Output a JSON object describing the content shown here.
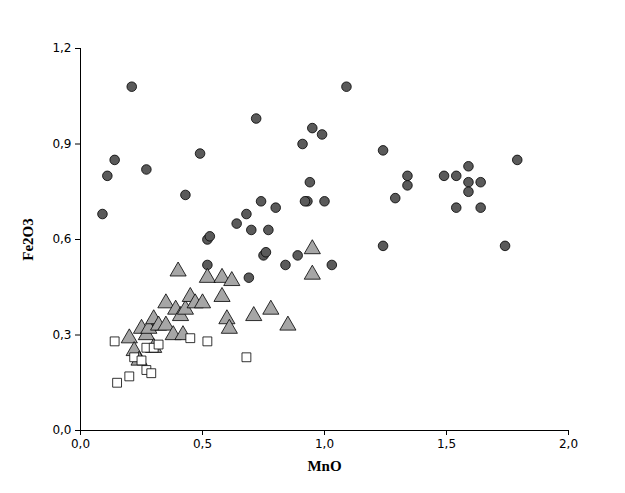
{
  "chart_data": {
    "type": "scatter",
    "x_label": "MnO",
    "y_label": "Fe2O3",
    "xlim": [
      0,
      2
    ],
    "ylim": [
      0,
      1.2
    ],
    "xticks": [
      {
        "value": 0,
        "label": "0,0"
      },
      {
        "value": 0.5,
        "label": "0,5"
      },
      {
        "value": 1,
        "label": "1,0"
      },
      {
        "value": 1.5,
        "label": "1,5"
      },
      {
        "value": 2,
        "label": "2,0"
      }
    ],
    "yticks": [
      {
        "value": 0,
        "label": "0,0"
      },
      {
        "value": 0.3,
        "label": "0,3"
      },
      {
        "value": 0.6,
        "label": "0,6"
      },
      {
        "value": 0.9,
        "label": "0,9"
      },
      {
        "value": 1.2,
        "label": "1,2"
      }
    ],
    "grid": false,
    "series": [
      {
        "color": "#5a5a5a",
        "marker": "circle",
        "x": [
          0.09,
          0.11,
          0.14,
          0.21,
          0.27,
          0.43,
          0.49,
          0.52,
          0.53,
          0.52,
          0.64,
          0.68,
          0.7,
          0.69,
          0.72,
          0.74,
          0.75,
          0.76,
          0.77,
          0.8,
          0.84,
          0.89,
          0.91,
          0.93,
          0.94,
          0.95,
          0.99,
          1.0,
          1.03,
          1.09,
          1.24,
          1.24,
          1.29,
          1.34,
          1.34,
          1.49,
          1.54,
          1.54,
          1.59,
          1.59,
          1.59,
          1.64,
          1.64,
          1.74,
          1.79,
          0.92,
          0.31
        ],
        "values": [
          0.68,
          0.8,
          0.85,
          1.08,
          0.82,
          0.74,
          0.87,
          0.6,
          0.61,
          0.52,
          0.65,
          0.68,
          0.63,
          0.48,
          0.98,
          0.72,
          0.55,
          0.56,
          0.63,
          0.7,
          0.52,
          0.55,
          0.9,
          0.72,
          0.78,
          0.95,
          0.93,
          0.72,
          0.52,
          1.08,
          0.88,
          0.58,
          0.73,
          0.8,
          0.77,
          0.8,
          0.8,
          0.7,
          0.83,
          0.78,
          0.75,
          0.78,
          0.7,
          0.58,
          0.85,
          0.72,
          0.33
        ]
      },
      {
        "color": "#a6a6a6",
        "marker": "triangle",
        "x": [
          0.2,
          0.22,
          0.24,
          0.25,
          0.27,
          0.28,
          0.3,
          0.3,
          0.32,
          0.35,
          0.35,
          0.38,
          0.39,
          0.4,
          0.41,
          0.42,
          0.43,
          0.45,
          0.47,
          0.5,
          0.52,
          0.58,
          0.58,
          0.6,
          0.61,
          0.62,
          0.71,
          0.78,
          0.85,
          0.95,
          0.95
        ],
        "values": [
          0.29,
          0.25,
          0.22,
          0.32,
          0.3,
          0.32,
          0.35,
          0.26,
          0.33,
          0.4,
          0.33,
          0.3,
          0.38,
          0.5,
          0.36,
          0.3,
          0.38,
          0.42,
          0.4,
          0.4,
          0.48,
          0.48,
          0.42,
          0.35,
          0.32,
          0.47,
          0.36,
          0.38,
          0.33,
          0.57,
          0.49
        ]
      },
      {
        "color": "#ffffff",
        "marker": "square",
        "x": [
          0.14,
          0.15,
          0.2,
          0.22,
          0.25,
          0.27,
          0.27,
          0.29,
          0.3,
          0.32,
          0.45,
          0.52,
          0.68
        ],
        "values": [
          0.28,
          0.15,
          0.17,
          0.23,
          0.22,
          0.26,
          0.19,
          0.18,
          0.26,
          0.27,
          0.29,
          0.28,
          0.23
        ]
      }
    ]
  }
}
